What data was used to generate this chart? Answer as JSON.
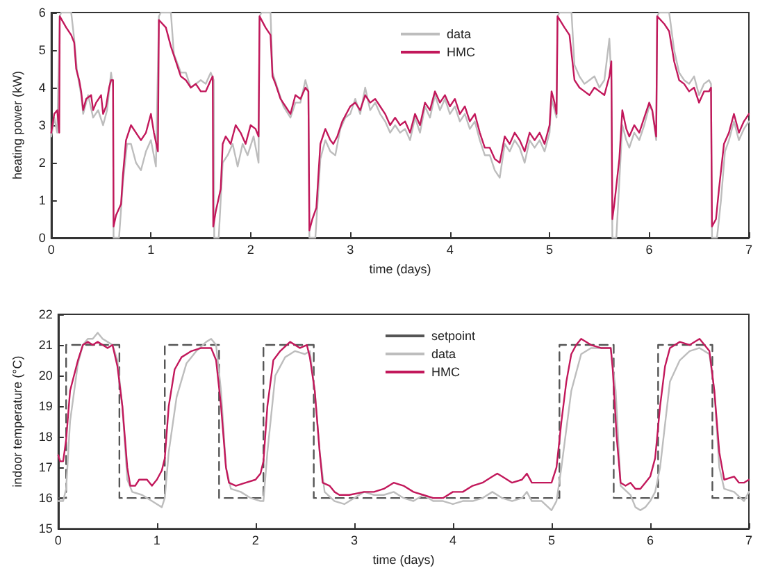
{
  "chart_data": [
    {
      "type": "line",
      "xlabel": "time (days)",
      "ylabel": "heating power (kW)",
      "xlim": [
        0,
        7
      ],
      "ylim": [
        0,
        6
      ],
      "xticks": [
        0,
        1,
        2,
        3,
        4,
        5,
        6,
        7
      ],
      "yticks": [
        0,
        1,
        2,
        3,
        4,
        5,
        6
      ],
      "grid": false,
      "legend": "top right",
      "marker": "none",
      "line_style": "solid",
      "series": [
        {
          "name": "data",
          "color": "#bdbdbd",
          "x": [
            0,
            0.03,
            0.06,
            0.085,
            0.1,
            0.2,
            0.23,
            0.26,
            0.3,
            0.32,
            0.37,
            0.42,
            0.47,
            0.52,
            0.56,
            0.6,
            0.62,
            0.625,
            0.68,
            0.72,
            0.76,
            0.8,
            0.85,
            0.9,
            0.95,
            1.0,
            1.05,
            1.08,
            1.1,
            1.2,
            1.23,
            1.3,
            1.35,
            1.4,
            1.5,
            1.55,
            1.6,
            1.63,
            1.635,
            1.68,
            1.72,
            1.77,
            1.82,
            1.87,
            1.92,
            1.97,
            2.03,
            2.08,
            2.09,
            2.11,
            2.2,
            2.22,
            2.28,
            2.33,
            2.4,
            2.45,
            2.5,
            2.55,
            2.58,
            2.59,
            2.65,
            2.7,
            2.75,
            2.8,
            2.85,
            2.9,
            2.95,
            3.0,
            3.05,
            3.1,
            3.15,
            3.2,
            3.25,
            3.3,
            3.35,
            3.4,
            3.45,
            3.5,
            3.55,
            3.6,
            3.65,
            3.7,
            3.75,
            3.8,
            3.85,
            3.9,
            3.95,
            4.0,
            4.05,
            4.1,
            4.15,
            4.2,
            4.25,
            4.3,
            4.35,
            4.4,
            4.45,
            4.5,
            4.55,
            4.6,
            4.65,
            4.7,
            4.75,
            4.8,
            4.85,
            4.9,
            4.95,
            5.0,
            5.02,
            5.07,
            5.08,
            5.1,
            5.22,
            5.25,
            5.3,
            5.35,
            5.4,
            5.45,
            5.5,
            5.55,
            5.6,
            5.62,
            5.63,
            5.67,
            5.7,
            5.73,
            5.77,
            5.8,
            5.85,
            5.9,
            5.95,
            6.0,
            6.03,
            6.07,
            6.08,
            6.1,
            6.2,
            6.25,
            6.3,
            6.35,
            6.4,
            6.45,
            6.5,
            6.55,
            6.6,
            6.62,
            6.63,
            6.68,
            6.72,
            6.76,
            6.8,
            6.85,
            6.9,
            6.95,
            7.0
          ],
          "values": [
            2.7,
            3.2,
            2.8,
            5.9,
            6,
            6,
            5.3,
            4.4,
            3.8,
            3.3,
            3.8,
            3.2,
            3.4,
            3.0,
            3.4,
            4.4,
            4.0,
            0,
            0,
            1.5,
            2.5,
            2.5,
            2.0,
            1.8,
            2.3,
            2.6,
            1.9,
            5.9,
            6,
            6,
            4.9,
            4.4,
            4.4,
            4.0,
            4.2,
            4.1,
            4.4,
            4.2,
            0,
            0,
            2.0,
            2.2,
            2.5,
            1.9,
            2.5,
            2.2,
            2.7,
            2.0,
            5.9,
            6,
            6,
            4.4,
            3.9,
            3.5,
            3.2,
            3.6,
            3.6,
            4.2,
            3.9,
            0,
            0,
            2.1,
            2.6,
            2.3,
            2.2,
            2.9,
            3.2,
            3.3,
            3.7,
            3.3,
            4.0,
            3.4,
            3.6,
            3.3,
            3.1,
            2.8,
            3.0,
            2.8,
            2.9,
            2.6,
            3.2,
            2.8,
            3.5,
            3.2,
            3.8,
            3.4,
            3.7,
            3.3,
            3.5,
            3.1,
            3.3,
            2.9,
            3.1,
            2.6,
            2.2,
            2.2,
            1.8,
            1.6,
            2.5,
            2.3,
            2.6,
            2.4,
            2.0,
            2.6,
            2.4,
            2.6,
            2.3,
            2.8,
            3.7,
            3.2,
            5.9,
            6,
            6,
            4.6,
            4.3,
            4.1,
            4.2,
            4.3,
            4.0,
            4.2,
            5.3,
            4.2,
            0,
            0,
            1.5,
            3.0,
            2.6,
            2.4,
            2.8,
            2.6,
            3.0,
            3.5,
            3.4,
            2.6,
            5.9,
            6,
            6,
            5.0,
            4.4,
            4.2,
            4.1,
            4.3,
            3.8,
            4.1,
            4.2,
            4.1,
            0,
            0,
            1.0,
            2.3,
            2.6,
            3.1,
            2.6,
            2.9,
            3.1
          ]
        },
        {
          "name": "HMC",
          "color": "#c2185b",
          "x": [
            0,
            0.03,
            0.06,
            0.08,
            0.085,
            0.15,
            0.2,
            0.23,
            0.25,
            0.28,
            0.3,
            0.32,
            0.35,
            0.4,
            0.42,
            0.45,
            0.5,
            0.52,
            0.55,
            0.58,
            0.6,
            0.62,
            0.625,
            0.65,
            0.7,
            0.72,
            0.75,
            0.8,
            0.85,
            0.9,
            0.95,
            1.0,
            1.03,
            1.07,
            1.08,
            1.15,
            1.2,
            1.25,
            1.3,
            1.35,
            1.4,
            1.45,
            1.5,
            1.55,
            1.6,
            1.62,
            1.625,
            1.65,
            1.7,
            1.72,
            1.75,
            1.8,
            1.85,
            1.9,
            1.95,
            2.0,
            2.05,
            2.08,
            2.09,
            2.15,
            2.2,
            2.22,
            2.25,
            2.3,
            2.35,
            2.4,
            2.45,
            2.5,
            2.55,
            2.58,
            2.59,
            2.62,
            2.66,
            2.7,
            2.75,
            2.8,
            2.83,
            2.87,
            2.92,
            3.0,
            3.05,
            3.1,
            3.15,
            3.2,
            3.25,
            3.3,
            3.35,
            3.4,
            3.45,
            3.5,
            3.55,
            3.6,
            3.65,
            3.7,
            3.75,
            3.8,
            3.85,
            3.9,
            3.95,
            4.0,
            4.05,
            4.1,
            4.15,
            4.2,
            4.25,
            4.3,
            4.35,
            4.4,
            4.45,
            4.5,
            4.55,
            4.6,
            4.65,
            4.7,
            4.75,
            4.8,
            4.85,
            4.9,
            4.95,
            5.0,
            5.02,
            5.05,
            5.07,
            5.08,
            5.15,
            5.2,
            5.25,
            5.3,
            5.35,
            5.4,
            5.45,
            5.5,
            5.55,
            5.6,
            5.62,
            5.63,
            5.65,
            5.7,
            5.73,
            5.77,
            5.8,
            5.85,
            5.9,
            5.95,
            6.0,
            6.03,
            6.07,
            6.08,
            6.15,
            6.2,
            6.25,
            6.3,
            6.35,
            6.4,
            6.45,
            6.5,
            6.55,
            6.6,
            6.62,
            6.63,
            6.67,
            6.7,
            6.75,
            6.8,
            6.85,
            6.9,
            6.95,
            7.0
          ],
          "values": [
            2.8,
            3.3,
            3.4,
            2.8,
            5.9,
            5.6,
            5.4,
            5.2,
            4.5,
            4.2,
            3.9,
            3.4,
            3.7,
            3.8,
            3.4,
            3.6,
            3.8,
            3.3,
            3.5,
            4.0,
            4.2,
            4.2,
            0.3,
            0.6,
            0.9,
            1.7,
            2.6,
            3.0,
            2.8,
            2.6,
            2.8,
            3.3,
            2.8,
            2.3,
            5.8,
            5.6,
            5.1,
            4.7,
            4.3,
            4.2,
            4.0,
            4.1,
            3.9,
            3.9,
            4.2,
            4.3,
            0.3,
            0.7,
            1.3,
            2.5,
            2.7,
            2.5,
            3.0,
            2.8,
            2.5,
            3.0,
            2.9,
            2.7,
            5.9,
            5.6,
            5.4,
            4.3,
            4.1,
            3.7,
            3.5,
            3.3,
            3.8,
            3.7,
            4.0,
            3.9,
            0.2,
            0.5,
            0.8,
            2.5,
            2.9,
            2.6,
            2.5,
            2.7,
            3.1,
            3.5,
            3.6,
            3.4,
            3.8,
            3.6,
            3.7,
            3.5,
            3.3,
            3.0,
            3.2,
            3.0,
            3.1,
            2.8,
            3.3,
            3.0,
            3.6,
            3.4,
            3.9,
            3.6,
            3.8,
            3.5,
            3.7,
            3.3,
            3.5,
            3.1,
            3.3,
            2.8,
            2.4,
            2.4,
            2.1,
            2.0,
            2.7,
            2.5,
            2.8,
            2.6,
            2.3,
            2.8,
            2.6,
            2.8,
            2.5,
            3.0,
            3.9,
            3.6,
            3.3,
            5.9,
            5.6,
            5.4,
            4.2,
            4.0,
            3.9,
            3.8,
            4.0,
            3.9,
            3.8,
            4.3,
            4.7,
            0.5,
            0.9,
            2.1,
            3.4,
            2.9,
            2.7,
            3.0,
            2.8,
            3.2,
            3.6,
            3.4,
            2.7,
            5.9,
            5.7,
            5.5,
            4.7,
            4.2,
            4.1,
            3.9,
            4.0,
            3.6,
            3.9,
            3.9,
            4.0,
            0.3,
            0.5,
            1.3,
            2.5,
            2.8,
            3.3,
            2.8,
            3.1,
            3.3
          ]
        }
      ]
    },
    {
      "type": "line",
      "xlabel": "time (days)",
      "ylabel": "indoor temperature (°C)",
      "xlim": [
        0,
        7
      ],
      "ylim": [
        15,
        22
      ],
      "xticks": [
        0,
        1,
        2,
        3,
        4,
        5,
        6,
        7
      ],
      "yticks": [
        15,
        16,
        17,
        18,
        19,
        20,
        21,
        22
      ],
      "grid": false,
      "legend": "top right",
      "marker": "none",
      "series": [
        {
          "name": "setpoint",
          "type": "step",
          "line_style": "dashed",
          "color": "#555555",
          "x": [
            0,
            0.08,
            0.62,
            1.08,
            1.63,
            2.08,
            2.59,
            5.08,
            5.63,
            6.08,
            6.63,
            7
          ],
          "values": [
            16,
            21,
            16,
            21,
            16,
            21,
            16,
            21,
            16,
            21,
            16,
            16
          ]
        },
        {
          "name": "data",
          "line_style": "solid",
          "color": "#bdbdbd",
          "x": [
            0,
            0.05,
            0.08,
            0.12,
            0.2,
            0.25,
            0.3,
            0.35,
            0.4,
            0.45,
            0.5,
            0.55,
            0.6,
            0.65,
            0.7,
            0.75,
            0.85,
            0.95,
            1.0,
            1.05,
            1.08,
            1.12,
            1.2,
            1.3,
            1.4,
            1.5,
            1.55,
            1.6,
            1.65,
            1.7,
            1.75,
            1.85,
            1.95,
            2.05,
            2.08,
            2.12,
            2.2,
            2.3,
            2.4,
            2.5,
            2.55,
            2.6,
            2.65,
            2.7,
            2.8,
            2.9,
            3.0,
            3.1,
            3.2,
            3.3,
            3.4,
            3.5,
            3.6,
            3.7,
            3.8,
            3.9,
            4.0,
            4.1,
            4.2,
            4.3,
            4.4,
            4.5,
            4.6,
            4.7,
            4.75,
            4.8,
            4.9,
            5.0,
            5.05,
            5.1,
            5.2,
            5.3,
            5.4,
            5.5,
            5.6,
            5.65,
            5.7,
            5.8,
            5.85,
            5.9,
            5.95,
            6.0,
            6.05,
            6.1,
            6.2,
            6.3,
            6.4,
            6.5,
            6.6,
            6.65,
            6.7,
            6.75,
            6.85,
            6.95,
            7.0
          ],
          "values": [
            15.9,
            15.9,
            16.3,
            18.5,
            20.4,
            21.0,
            21.2,
            21.2,
            21.4,
            21.2,
            21.1,
            21.0,
            20.5,
            19.0,
            16.6,
            16.2,
            16.1,
            15.9,
            15.8,
            15.7,
            16.0,
            17.5,
            19.3,
            20.4,
            20.8,
            21.1,
            21.2,
            21.0,
            19.5,
            17.0,
            16.3,
            16.2,
            16.0,
            15.9,
            15.9,
            17.5,
            20.0,
            20.6,
            20.8,
            20.7,
            20.8,
            19.5,
            17.5,
            16.2,
            15.9,
            15.8,
            16.0,
            16.2,
            16.1,
            16.1,
            16.2,
            16.0,
            15.9,
            16.1,
            15.9,
            15.9,
            15.8,
            15.9,
            15.9,
            16.0,
            16.2,
            16.0,
            15.9,
            16.0,
            16.2,
            15.9,
            15.9,
            15.6,
            15.9,
            17.0,
            19.5,
            20.7,
            20.9,
            20.9,
            20.9,
            19.5,
            16.4,
            16.1,
            15.7,
            15.6,
            15.7,
            15.9,
            16.2,
            17.0,
            19.8,
            20.5,
            20.8,
            20.9,
            20.7,
            19.5,
            17.0,
            16.3,
            16.2,
            15.9,
            16.2
          ]
        },
        {
          "name": "HMC",
          "line_style": "solid",
          "color": "#c2185b",
          "x": [
            0,
            0.02,
            0.05,
            0.08,
            0.12,
            0.2,
            0.25,
            0.3,
            0.35,
            0.4,
            0.45,
            0.5,
            0.55,
            0.6,
            0.65,
            0.7,
            0.73,
            0.78,
            0.82,
            0.9,
            0.95,
            1.0,
            1.05,
            1.08,
            1.12,
            1.18,
            1.25,
            1.35,
            1.45,
            1.55,
            1.6,
            1.65,
            1.7,
            1.73,
            1.8,
            1.9,
            2.0,
            2.05,
            2.08,
            2.12,
            2.18,
            2.25,
            2.35,
            2.45,
            2.52,
            2.55,
            2.6,
            2.65,
            2.68,
            2.75,
            2.8,
            2.85,
            2.95,
            3.1,
            3.2,
            3.3,
            3.4,
            3.5,
            3.6,
            3.7,
            3.8,
            3.9,
            4.0,
            4.1,
            4.2,
            4.3,
            4.4,
            4.45,
            4.5,
            4.6,
            4.7,
            4.75,
            4.8,
            4.9,
            5.0,
            5.05,
            5.1,
            5.15,
            5.2,
            5.25,
            5.3,
            5.4,
            5.5,
            5.6,
            5.62,
            5.66,
            5.7,
            5.75,
            5.8,
            5.85,
            5.9,
            5.95,
            6.0,
            6.05,
            6.1,
            6.15,
            6.2,
            6.25,
            6.3,
            6.4,
            6.5,
            6.55,
            6.6,
            6.65,
            6.7,
            6.75,
            6.85,
            6.9,
            6.95,
            7.0
          ],
          "values": [
            17.4,
            17.2,
            17.2,
            17.9,
            19.5,
            20.5,
            21.0,
            21.1,
            21.0,
            21.1,
            21.0,
            20.9,
            21.0,
            20.3,
            19.0,
            17.0,
            16.4,
            16.4,
            16.6,
            16.6,
            16.4,
            16.6,
            16.9,
            17.3,
            19.0,
            20.2,
            20.6,
            20.8,
            20.9,
            20.9,
            20.5,
            19.0,
            17.0,
            16.5,
            16.4,
            16.5,
            16.6,
            16.8,
            17.2,
            19.0,
            20.5,
            20.8,
            21.1,
            20.9,
            21.0,
            20.6,
            19.5,
            17.5,
            16.5,
            16.4,
            16.2,
            16.1,
            16.1,
            16.2,
            16.2,
            16.3,
            16.5,
            16.4,
            16.2,
            16.1,
            16.0,
            16.0,
            16.2,
            16.2,
            16.4,
            16.5,
            16.7,
            16.8,
            16.7,
            16.5,
            16.6,
            16.8,
            16.5,
            16.5,
            16.5,
            17.0,
            18.5,
            19.8,
            20.7,
            21.0,
            21.2,
            21.0,
            20.9,
            20.9,
            20.2,
            18.0,
            16.5,
            16.4,
            16.5,
            16.3,
            16.3,
            16.5,
            16.7,
            17.3,
            19.0,
            20.3,
            20.9,
            21.0,
            21.1,
            21.0,
            21.2,
            21.0,
            20.8,
            19.5,
            17.5,
            16.6,
            16.7,
            16.5,
            16.5,
            16.6
          ]
        }
      ]
    }
  ]
}
